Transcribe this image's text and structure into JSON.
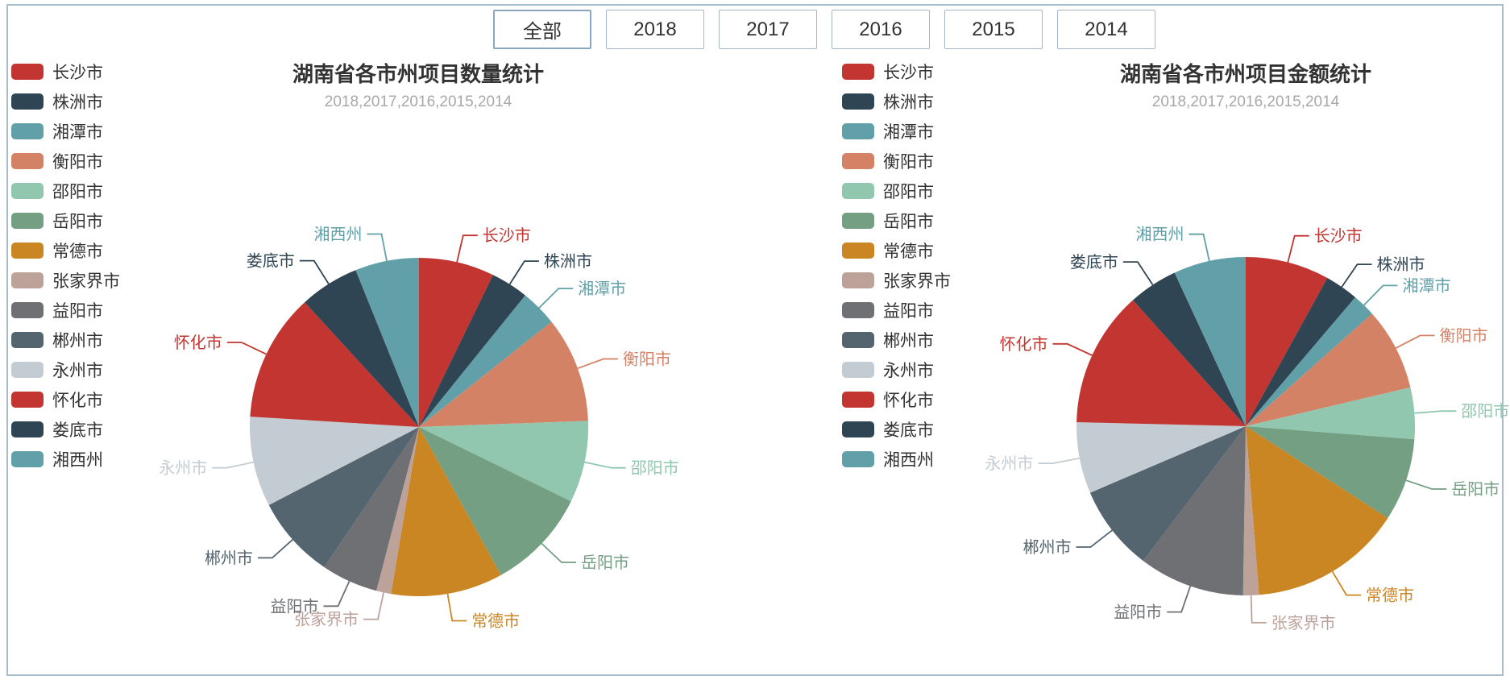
{
  "filter_buttons": [
    {
      "label": "全部",
      "selected": true
    },
    {
      "label": "2018",
      "selected": false
    },
    {
      "label": "2017",
      "selected": false
    },
    {
      "label": "2016",
      "selected": false
    },
    {
      "label": "2015",
      "selected": false
    },
    {
      "label": "2014",
      "selected": false
    }
  ],
  "chart_data": [
    {
      "type": "pie",
      "title": "湖南省各市州项目数量统计",
      "subtitle": "2018,2017,2016,2015,2014",
      "legend_position": "left",
      "value_unit": "percent (estimated from slice arc angles; no numbers shown on screen)",
      "labels": [
        "长沙市",
        "株洲市",
        "湘潭市",
        "衡阳市",
        "邵阳市",
        "岳阳市",
        "常德市",
        "张家界市",
        "益阳市",
        "郴州市",
        "永州市",
        "怀化市",
        "娄底市",
        "湘西州"
      ],
      "values": [
        7.2,
        3.6,
        3.5,
        10.1,
        7.8,
        9.7,
        10.7,
        1.4,
        5.4,
        7.9,
        8.6,
        12.2,
        5.7,
        6.1
      ],
      "colors": [
        "#c23531",
        "#2f4554",
        "#61a0a8",
        "#d48265",
        "#91c7ae",
        "#749f83",
        "#ca8622",
        "#bda29a",
        "#6e7074",
        "#546570",
        "#c4ccd3",
        "#c23531",
        "#2f4554",
        "#61a0a8"
      ]
    },
    {
      "type": "pie",
      "title": "湖南省各市州项目金额统计",
      "subtitle": "2018,2017,2016,2015,2014",
      "legend_position": "left",
      "value_unit": "percent (estimated from slice arc angles; no numbers shown on screen)",
      "labels": [
        "长沙市",
        "株洲市",
        "湘潭市",
        "衡阳市",
        "邵阳市",
        "岳阳市",
        "常德市",
        "张家界市",
        "益阳市",
        "郴州市",
        "永州市",
        "怀化市",
        "娄底市",
        "湘西州"
      ],
      "values": [
        8.0,
        3.2,
        2.2,
        7.9,
        4.9,
        7.9,
        14.6,
        1.5,
        10.1,
        8.2,
        6.8,
        13.0,
        4.7,
        6.9
      ],
      "colors": [
        "#c23531",
        "#2f4554",
        "#61a0a8",
        "#d48265",
        "#91c7ae",
        "#749f83",
        "#ca8622",
        "#bda29a",
        "#6e7074",
        "#546570",
        "#c4ccd3",
        "#c23531",
        "#2f4554",
        "#61a0a8"
      ]
    }
  ],
  "colors": {
    "page_border": "#a9bcca",
    "button_border": "#a3b7c9",
    "title_text": "#333333",
    "subtitle_text": "#a8a8a8",
    "legend_text": "#333333"
  }
}
